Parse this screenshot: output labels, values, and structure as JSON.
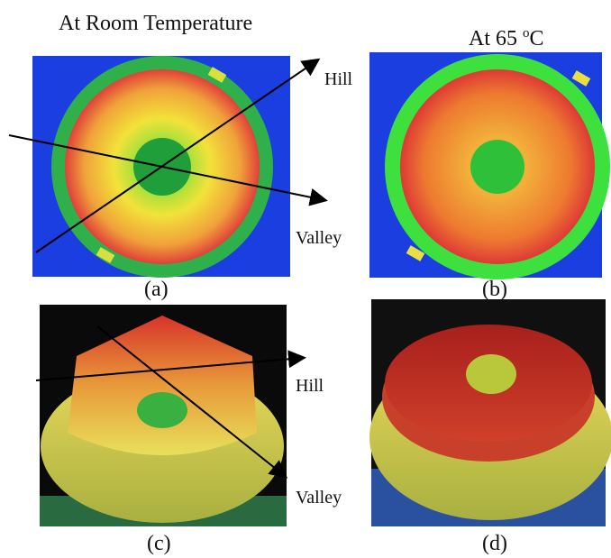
{
  "panels": [
    {
      "title": "At Room Temperature",
      "caption": "(a)",
      "labels": [
        "Hill",
        "Valley"
      ]
    },
    {
      "title": [
        "At 65 ",
        "o",
        "C"
      ],
      "caption": "(b)"
    },
    {
      "caption": "(c)",
      "labels": [
        "Hill",
        "Valley"
      ]
    },
    {
      "caption": "(d)"
    }
  ]
}
